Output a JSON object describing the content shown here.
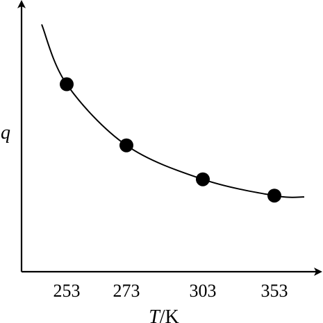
{
  "chart_data": {
    "type": "scatter",
    "title": "",
    "xlabel_var": "T",
    "xlabel_unit": "/K",
    "ylabel": "q",
    "x_ticks": [
      "253",
      "273",
      "303",
      "353"
    ],
    "points": [
      {
        "x": "253",
        "y": 0.69
      },
      {
        "x": "273",
        "y": 0.465
      },
      {
        "x": "303",
        "y": 0.34
      },
      {
        "x": "353",
        "y": 0.28
      }
    ],
    "curve": [
      {
        "x": "< 253",
        "y": 0.91
      },
      {
        "x": "253",
        "y": 0.69
      },
      {
        "x": "273",
        "y": 0.465
      },
      {
        "x": "303",
        "y": 0.34
      },
      {
        "x": "353",
        "y": 0.28
      },
      {
        "x": "> 353",
        "y": 0.275
      }
    ],
    "y_ticks_shown": false,
    "grid": false,
    "legend": "none"
  }
}
